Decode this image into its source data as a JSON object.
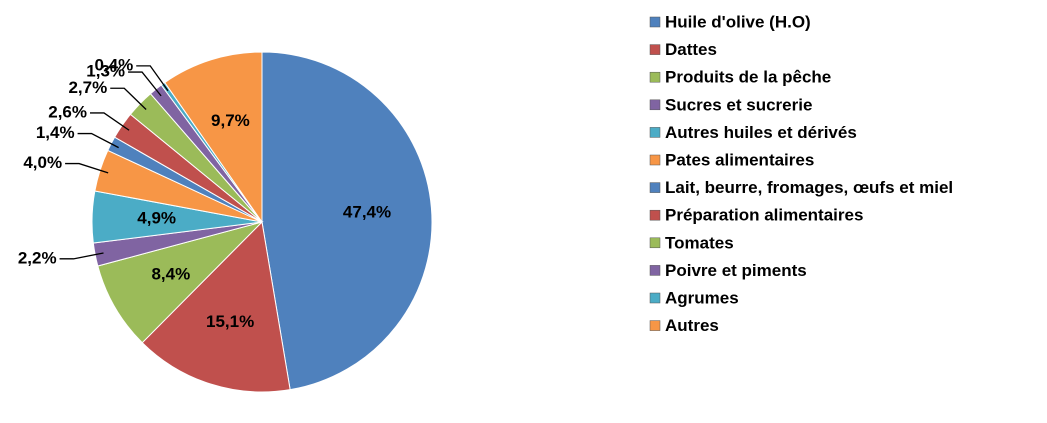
{
  "chart_data": {
    "type": "pie",
    "categories": [
      "Huile d'olive (H.O)",
      "Dattes",
      "Produits de la pêche",
      "Sucres et sucrerie",
      "Autres huiles et dérivés",
      "Pates alimentaires",
      "Lait, beurre, fromages, œufs et miel",
      "Préparation alimentaires",
      "Tomates",
      "Poivre et piments",
      "Agrumes",
      "Autres"
    ],
    "values": [
      47.4,
      15.1,
      8.4,
      2.2,
      4.9,
      4.0,
      1.4,
      2.6,
      2.7,
      1.3,
      0.4,
      9.7
    ],
    "value_labels": [
      "47,4%",
      "15,1%",
      "8,4%",
      "2,2%",
      "4,9%",
      "4,0%",
      "1,4%",
      "2,6%",
      "2,7%",
      "1,3%",
      "0,4%",
      "9,7%"
    ],
    "colors": [
      "#4f81bd",
      "#c0504d",
      "#9bbb59",
      "#8064a2",
      "#4bacc6",
      "#f79646",
      "#4f81bd",
      "#c0504d",
      "#9bbb59",
      "#8064a2",
      "#4bacc6",
      "#f79646"
    ],
    "legend": "right"
  }
}
